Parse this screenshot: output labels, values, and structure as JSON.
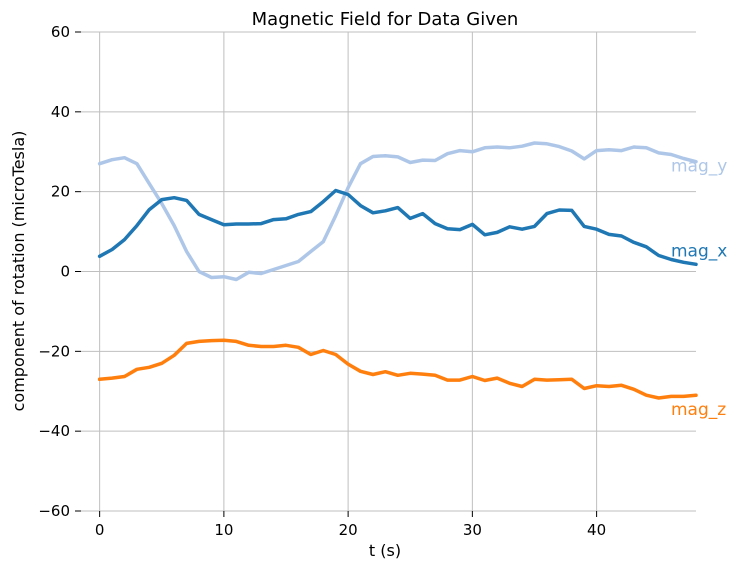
{
  "chart_data": {
    "type": "line",
    "title": "Magnetic Field for Data Given",
    "xlabel": "t (s)",
    "ylabel": "component of rotation (microTesla)",
    "xlim": [
      -1.5,
      48
    ],
    "ylim": [
      -60,
      60
    ],
    "xticks": [
      0,
      10,
      20,
      30,
      40
    ],
    "yticks": [
      -60,
      -40,
      -20,
      0,
      20,
      40,
      60
    ],
    "xtick_labels": [
      "0",
      "10",
      "20",
      "30",
      "40"
    ],
    "ytick_labels": [
      "−60",
      "−40",
      "−20",
      "0",
      "20",
      "40",
      "60"
    ],
    "grid": true,
    "legend": "inline labels at right end of lines",
    "x": [
      0,
      1,
      2,
      3,
      4,
      5,
      6,
      7,
      8,
      9,
      10,
      11,
      12,
      13,
      14,
      15,
      16,
      17,
      18,
      19,
      20,
      21,
      22,
      23,
      24,
      25,
      26,
      27,
      28,
      29,
      30,
      31,
      32,
      33,
      34,
      35,
      36,
      37,
      38,
      39,
      40,
      41,
      42,
      43,
      44,
      45,
      46,
      47,
      48
    ],
    "series": [
      {
        "name": "mag_y",
        "color": "#aec7e8",
        "values": [
          27,
          28,
          28.5,
          27,
          22,
          17,
          11.5,
          5,
          0,
          -1.5,
          -1.3,
          -2,
          -0.2,
          -0.5,
          0.5,
          1.5,
          2.5,
          5,
          7.5,
          14,
          21,
          27,
          28.8,
          29,
          28.7,
          27.3,
          27.9,
          27.8,
          29.5,
          30.3,
          30,
          31,
          31.2,
          31,
          31.4,
          32.2,
          32,
          31.3,
          30.2,
          28.2,
          30.3,
          30.5,
          30.3,
          31.2,
          31,
          29.7,
          29.3,
          28.3,
          27.5
        ]
      },
      {
        "name": "mag_x",
        "color": "#1f77b4",
        "values": [
          3.8,
          5.5,
          8,
          11.5,
          15.5,
          18,
          18.5,
          17.8,
          14.3,
          13,
          11.7,
          11.9,
          11.9,
          12,
          13,
          13.2,
          14.3,
          15,
          17.5,
          20.3,
          19.3,
          16.5,
          14.7,
          15.2,
          16,
          13.3,
          14.5,
          12,
          10.7,
          10.5,
          11.8,
          9.2,
          9.8,
          11.2,
          10.6,
          11.3,
          14.5,
          15.4,
          15.3,
          11.3,
          10.6,
          9.3,
          8.9,
          7.3,
          6.2,
          4,
          3,
          2.3,
          1.8
        ]
      },
      {
        "name": "mag_z",
        "color": "#ff7f0e",
        "values": [
          -27,
          -26.7,
          -26.3,
          -24.5,
          -24,
          -23,
          -21,
          -18,
          -17.5,
          -17.3,
          -17.2,
          -17.5,
          -18.5,
          -18.8,
          -18.8,
          -18.5,
          -19,
          -20.8,
          -19.8,
          -20.8,
          -23.2,
          -25,
          -25.8,
          -25.1,
          -26,
          -25.5,
          -25.7,
          -26,
          -27.2,
          -27.2,
          -26.3,
          -27.3,
          -26.7,
          -28,
          -28.8,
          -27,
          -27.2,
          -27.1,
          -27,
          -29.3,
          -28.6,
          -28.8,
          -28.5,
          -29.5,
          -31,
          -31.7,
          -31.3,
          -31.3,
          -31
        ]
      }
    ]
  }
}
